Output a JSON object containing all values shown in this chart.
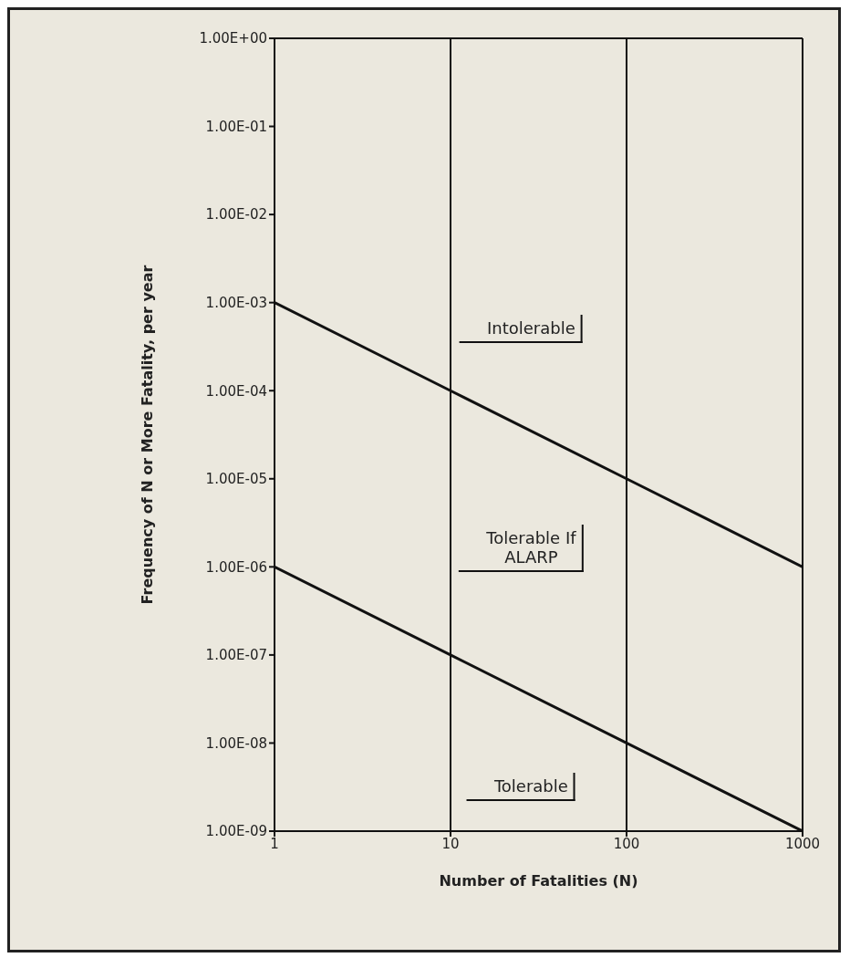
{
  "chart_data": {
    "type": "line",
    "xlabel": "Number of Fatalities (N)",
    "ylabel": "Frequency of N or More Fatality, per year",
    "x": [
      1,
      10,
      100,
      1000
    ],
    "series": [
      {
        "color": "#111111",
        "values": [
          0.001,
          0.0001,
          1e-05,
          1e-06
        ]
      },
      {
        "color": "#111111",
        "values": [
          1e-06,
          1e-07,
          1e-08,
          1e-09
        ]
      }
    ],
    "log": "xy",
    "xlim": [
      1,
      1000
    ],
    "ylim": [
      1e-09,
      1
    ],
    "xticks": [
      1,
      10,
      100,
      1000
    ],
    "yticks": [
      {
        "value": 1e-09,
        "label": "1.00E-09"
      },
      {
        "value": 1e-08,
        "label": "1.00E-08"
      },
      {
        "value": 1e-07,
        "label": "1.00E-07"
      },
      {
        "value": 1e-06,
        "label": "1.00E-06"
      },
      {
        "value": 1e-05,
        "label": "1.00E-05"
      },
      {
        "value": 0.0001,
        "label": "1.00E-04"
      },
      {
        "value": 0.001,
        "label": "1.00E-03"
      },
      {
        "value": 0.01,
        "label": "1.00E-02"
      },
      {
        "value": 0.1,
        "label": "1.00E-01"
      },
      {
        "value": 1,
        "label": "1.00E+00"
      }
    ],
    "grid": "x",
    "marker": "none",
    "line_style": "solid",
    "legend": false,
    "annotations": [
      "Intolerable",
      "Tolerable If\nALARP",
      "Tolerable"
    ]
  }
}
